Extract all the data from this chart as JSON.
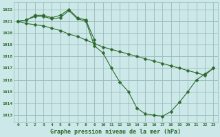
{
  "bg_color": "#cce8e8",
  "grid_color": "#99bbbb",
  "line_color": "#2d6a2d",
  "title": "Graphe pression niveau de la mer (hPa)",
  "ylabel_values": [
    1013,
    1014,
    1015,
    1016,
    1017,
    1018,
    1019,
    1020,
    1021,
    1022
  ],
  "xlim": [
    0,
    23
  ],
  "ylim": [
    1012.4,
    1022.6
  ],
  "line1_x": [
    0,
    1,
    2,
    3,
    4,
    5,
    6,
    7,
    8,
    9
  ],
  "line1_y": [
    1021.0,
    1021.1,
    1021.5,
    1021.5,
    1021.3,
    1021.5,
    1022.0,
    1021.3,
    1021.1,
    1019.4
  ],
  "line2_x": [
    0,
    1,
    2,
    3,
    4,
    5,
    6,
    7,
    8,
    9,
    10,
    11,
    12,
    13,
    14,
    15,
    16,
    17,
    18,
    19,
    20,
    21,
    22,
    23
  ],
  "line2_y": [
    1021.0,
    1021.1,
    1021.4,
    1021.4,
    1021.2,
    1021.3,
    1021.9,
    1021.2,
    1021.0,
    1018.9,
    1018.3,
    1017.0,
    1015.8,
    1015.0,
    1013.6,
    1013.1,
    1013.0,
    1012.9,
    1013.3,
    1014.1,
    1015.0,
    1016.0,
    1016.5,
    1017.0
  ],
  "line3_x": [
    0,
    1,
    2,
    3,
    4,
    5,
    6,
    7,
    8,
    9,
    10,
    11,
    12,
    13,
    14,
    15,
    16,
    17,
    18,
    19,
    20,
    21,
    22,
    23
  ],
  "line3_y": [
    1021.0,
    1020.8,
    1020.7,
    1020.6,
    1020.4,
    1020.2,
    1019.9,
    1019.7,
    1019.4,
    1019.1,
    1018.8,
    1018.6,
    1018.4,
    1018.2,
    1018.0,
    1017.8,
    1017.6,
    1017.4,
    1017.2,
    1017.0,
    1016.8,
    1016.6,
    1016.4,
    1017.0
  ]
}
